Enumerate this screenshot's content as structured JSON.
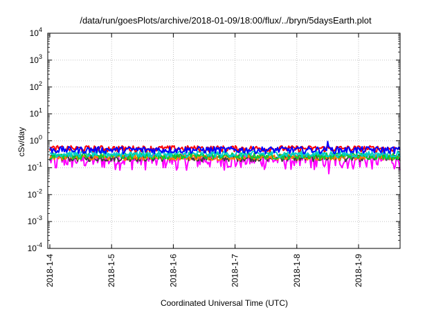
{
  "chart_data": {
    "type": "line",
    "title": "/data/run/goesPlots/archive/2018-01-09/18:00/flux/../bryn/5daysEarth.plot",
    "xlabel": "Coordinated Universal Time (UTC)",
    "ylabel": "cSv/day",
    "yscale": "log",
    "ylim": [
      0.0001,
      10000
    ],
    "y_ticks": [
      {
        "base": "10",
        "exp": "-4"
      },
      {
        "base": "10",
        "exp": "-3"
      },
      {
        "base": "10",
        "exp": "-2"
      },
      {
        "base": "10",
        "exp": "-1"
      },
      {
        "base": "10",
        "exp": "0"
      },
      {
        "base": "10",
        "exp": "1"
      },
      {
        "base": "10",
        "exp": "2"
      },
      {
        "base": "10",
        "exp": "3"
      },
      {
        "base": "10",
        "exp": "4"
      }
    ],
    "x_range": [
      "2018-01-04",
      "2018-01-09 18:00"
    ],
    "x_ticks": [
      "2018-1-4",
      "2018-1-5",
      "2018-1-6",
      "2018-1-7",
      "2018-1-8",
      "2018-1-9"
    ],
    "grid": true,
    "legend": "none",
    "series": [
      {
        "color": "#ff00ff",
        "level": 0.2,
        "noise": 0.08,
        "dips": [
          {
            "day": 0.1,
            "value": 0.1
          },
          {
            "day": 1.1,
            "value": 0.14
          },
          {
            "day": 2.07,
            "value": 0.1
          },
          {
            "day": 3.0,
            "value": 0.11
          },
          {
            "day": 4.05,
            "value": 0.12
          },
          {
            "day": 4.32,
            "value": 0.11
          },
          {
            "day": 4.52,
            "value": 0.06
          },
          {
            "day": 4.63,
            "value": 0.12
          }
        ]
      },
      {
        "color": "#404040",
        "level": 0.23,
        "noise": 0.04,
        "dips": []
      },
      {
        "color": "#ff7f00",
        "level": 0.25,
        "noise": 0.04,
        "dips": []
      },
      {
        "color": "#00cc33",
        "level": 0.28,
        "noise": 0.05,
        "dips": []
      },
      {
        "color": "#00cccc",
        "level": 0.33,
        "noise": 0.06,
        "dips": []
      },
      {
        "color": "#ff0000",
        "level": 0.52,
        "noise": 0.09,
        "dips": []
      },
      {
        "color": "#0000ff",
        "level": 0.47,
        "noise": 0.09,
        "dips": [
          {
            "day": 4.5,
            "value": 0.95
          }
        ]
      }
    ]
  }
}
